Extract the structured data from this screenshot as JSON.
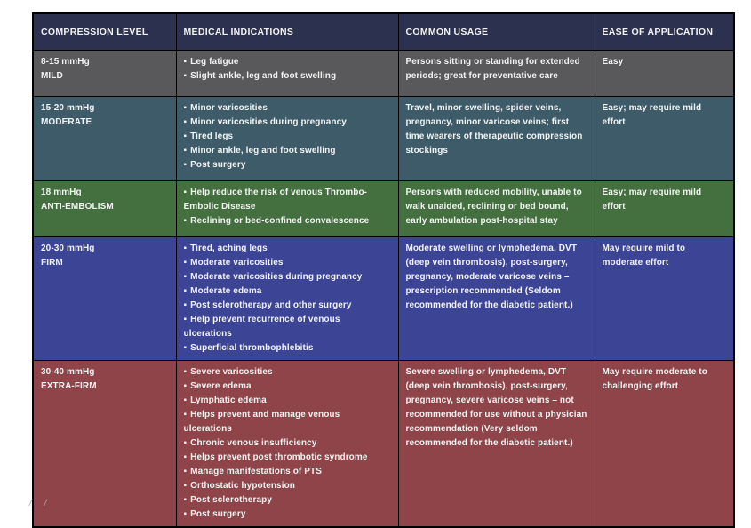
{
  "table": {
    "headers": [
      "COMPRESSION LEVEL",
      "MEDICAL INDICATIONS",
      "COMMON USAGE",
      "EASE OF APPLICATION"
    ],
    "header_bg": "#2d3150",
    "border_color": "#000000",
    "text_color": "#f2f2f2",
    "bullet": "▪",
    "rows": [
      {
        "level": [
          "8-15 mmHg",
          "MILD"
        ],
        "bg": "#59595b",
        "indications": [
          "Leg fatigue",
          "Slight ankle, leg and foot swelling"
        ],
        "usage": "Persons sitting or standing for extended periods; great for preventative care",
        "ease": "Easy"
      },
      {
        "level": [
          "15-20 mmHg",
          "MODERATE"
        ],
        "bg": "#3e5b69",
        "indications": [
          "Minor varicosities",
          "Minor varicosities during pregnancy",
          "Tired legs",
          "Minor ankle, leg and foot swelling",
          "Post surgery"
        ],
        "usage": "Travel, minor swelling, spider veins, pregnancy, minor varicose veins; first time wearers of therapeutic compression stockings",
        "ease": "Easy; may require mild effort"
      },
      {
        "level": [
          "18 mmHg",
          "ANTI-EMBOLISM"
        ],
        "bg": "#44703f",
        "indications": [
          "Help reduce the risk of venous Thrombo-Embolic Disease",
          "Reclining or bed-confined convalescence"
        ],
        "usage": "Persons with reduced mobility, unable to walk unaided, reclining or bed bound, early ambulation post-hospital stay",
        "ease": "Easy; may require mild effort"
      },
      {
        "level": [
          "20-30 mmHg",
          "FIRM"
        ],
        "bg": "#3b4495",
        "indications": [
          "Tired, aching legs",
          "Moderate varicosities",
          "Moderate varicosities during pregnancy",
          "Moderate edema",
          "Post sclerotherapy and other surgery",
          "Help prevent recurrence of venous ulcerations",
          "Superficial thrombophlebitis"
        ],
        "usage": "Moderate swelling or lymphedema, DVT (deep vein thrombosis), post-surgery, pregnancy, moderate varicose veins – prescription recommended (Seldom recommended for the diabetic patient.)",
        "ease": "May require mild to moderate effort"
      },
      {
        "level": [
          "30-40 mmHg",
          "EXTRA-FIRM"
        ],
        "bg": "#8f4449",
        "indications": [
          "Severe varicosities",
          "Severe edema",
          "Lymphatic edema",
          "Helps prevent and manage venous ulcerations",
          "Chronic venous insufficiency",
          "Helps prevent post thrombotic syndrome",
          "Manage manifestations of PTS",
          "Orthostatic hypotension",
          "Post sclerotherapy",
          "Post surgery"
        ],
        "usage": "Severe swelling or lymphedema, DVT (deep vein thrombosis), post-surgery, pregnancy, severe varicose veins – not recommended for use without a physician recommendation (Very seldom recommended for the diabetic patient.)",
        "ease": "May require moderate to challenging effort"
      }
    ]
  },
  "footer": {
    "marks": [
      "/",
      "/"
    ]
  }
}
